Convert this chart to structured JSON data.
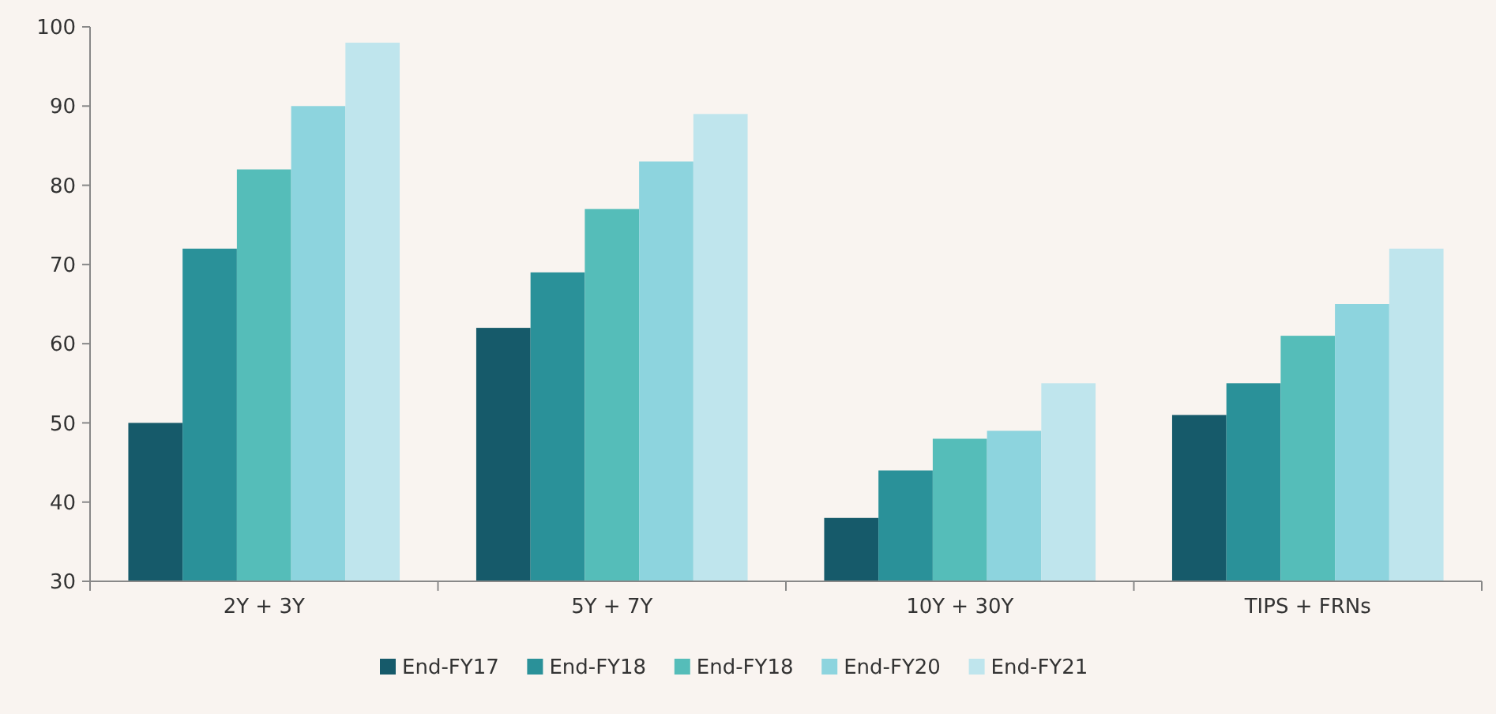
{
  "chart_data": {
    "type": "bar",
    "categories": [
      "2Y + 3Y",
      "5Y + 7Y",
      "10Y + 30Y",
      "TIPS + FRNs"
    ],
    "series": [
      {
        "name": "End-FY17",
        "color": "#165a6a",
        "values": [
          50,
          62,
          38,
          51
        ]
      },
      {
        "name": "End-FY18",
        "color": "#2a9199",
        "values": [
          72,
          69,
          44,
          55
        ]
      },
      {
        "name": "End-FY18",
        "color": "#55bdb9",
        "values": [
          82,
          77,
          48,
          61
        ]
      },
      {
        "name": "End-FY20",
        "color": "#8dd4de",
        "values": [
          90,
          83,
          49,
          65
        ]
      },
      {
        "name": "End-FY21",
        "color": "#bfe5ed",
        "values": [
          98,
          89,
          55,
          72
        ]
      }
    ],
    "ylim": [
      30,
      100
    ],
    "yticks": [
      30,
      40,
      50,
      60,
      70,
      80,
      90,
      100
    ],
    "grid": false,
    "legend": "bottom"
  }
}
